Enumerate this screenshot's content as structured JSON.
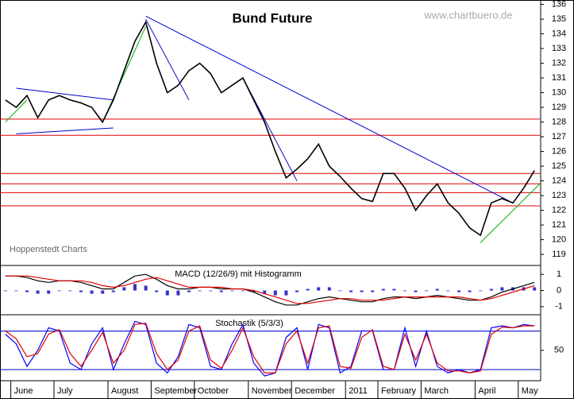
{
  "chart_data": [
    {
      "type": "line",
      "title": "Bund Future",
      "watermark": "www.chartbuero.de",
      "source": "Hoppenstedt Charts",
      "color": "#000000",
      "categories": [
        null,
        "June",
        null,
        null,
        null,
        "July",
        null,
        null,
        null,
        null,
        "August",
        null,
        null,
        null,
        "September",
        null,
        null,
        null,
        "October",
        null,
        null,
        null,
        null,
        "November",
        null,
        null,
        null,
        "December",
        null,
        null,
        null,
        null,
        "2011",
        null,
        null,
        "February",
        null,
        null,
        null,
        "March",
        null,
        null,
        null,
        null,
        "April",
        null,
        null,
        null,
        "May",
        null
      ],
      "values": [
        129.5,
        129,
        129.8,
        128.3,
        129.5,
        129.8,
        129.5,
        129.3,
        129,
        128,
        129.5,
        131.5,
        133.5,
        134.8,
        132,
        130,
        130.5,
        131.5,
        132,
        131.3,
        130,
        130.5,
        131,
        129.5,
        128,
        126,
        124.2,
        124.8,
        125.5,
        126.5,
        125,
        124.3,
        123.5,
        122.8,
        122.6,
        124.5,
        124.5,
        123.5,
        122,
        123,
        123.8,
        122.5,
        121.8,
        120.8,
        120.3,
        122.5,
        122.8,
        122.5,
        123.5,
        124.7
      ],
      "ylim": [
        118.3,
        136.3
      ],
      "yticks": [
        119,
        120,
        121,
        122,
        123,
        124,
        125,
        126,
        127,
        128,
        129,
        130,
        131,
        132,
        133,
        134,
        135,
        136
      ],
      "levels": [
        128.2,
        127.1,
        124.5,
        123.8,
        123.2,
        122.3
      ],
      "level_color": "#e00000",
      "trendlines": [
        {
          "color": "#0000cc",
          "x": [
            13,
            47
          ],
          "values": [
            135.2,
            122.5
          ]
        },
        {
          "color": "#0000cc",
          "x": [
            1,
            10
          ],
          "values": [
            130.3,
            129.5
          ]
        },
        {
          "color": "#0000cc",
          "x": [
            1,
            10
          ],
          "values": [
            127.2,
            127.6
          ]
        },
        {
          "color": "#0000cc",
          "x": [
            13,
            17
          ],
          "values": [
            135,
            129.5
          ]
        },
        {
          "color": "#0000cc",
          "x": [
            22,
            27
          ],
          "values": [
            131,
            124
          ]
        },
        {
          "color": "#00aa00",
          "x": [
            9,
            13
          ],
          "values": [
            128,
            134.5
          ]
        },
        {
          "color": "#00aa00",
          "x": [
            44,
            49.5
          ],
          "values": [
            119.8,
            123.8
          ]
        },
        {
          "color": "#00aa00",
          "x": [
            0,
            2
          ],
          "values": [
            128,
            129.5
          ]
        }
      ]
    },
    {
      "type": "macd",
      "title": "MACD (12/26/9) mit Histogramm",
      "ylim": [
        -1.5,
        1.5
      ],
      "yticks": [
        -1,
        0,
        1
      ],
      "series": [
        {
          "color": "#000000",
          "values": [
            0.9,
            0.9,
            0.8,
            0.6,
            0.5,
            0.6,
            0.6,
            0.5,
            0.3,
            0.1,
            0.1,
            0.5,
            0.9,
            1.0,
            0.7,
            0.3,
            0.1,
            0.1,
            0.2,
            0.2,
            0.1,
            0.1,
            0.1,
            -0.1,
            -0.4,
            -0.7,
            -0.9,
            -0.9,
            -0.7,
            -0.5,
            -0.4,
            -0.5,
            -0.6,
            -0.7,
            -0.7,
            -0.5,
            -0.4,
            -0.4,
            -0.5,
            -0.4,
            -0.3,
            -0.4,
            -0.5,
            -0.6,
            -0.6,
            -0.4,
            -0.1,
            0.1,
            0.3,
            0.5
          ]
        },
        {
          "color": "#e00000",
          "values": [
            0.9,
            0.9,
            0.9,
            0.8,
            0.7,
            0.6,
            0.6,
            0.6,
            0.5,
            0.3,
            0.2,
            0.3,
            0.5,
            0.7,
            0.8,
            0.6,
            0.4,
            0.2,
            0.2,
            0.2,
            0.2,
            0.1,
            0.1,
            0.0,
            -0.2,
            -0.4,
            -0.6,
            -0.8,
            -0.8,
            -0.7,
            -0.6,
            -0.5,
            -0.5,
            -0.6,
            -0.6,
            -0.6,
            -0.5,
            -0.4,
            -0.4,
            -0.4,
            -0.4,
            -0.4,
            -0.4,
            -0.5,
            -0.6,
            -0.5,
            -0.3,
            -0.1,
            0.1,
            0.3
          ]
        }
      ],
      "histogram": {
        "color": "#3333cc",
        "values": [
          0,
          0,
          -0.1,
          -0.2,
          -0.2,
          0,
          0,
          -0.1,
          -0.2,
          -0.2,
          -0.1,
          0.2,
          0.4,
          0.3,
          -0.1,
          -0.3,
          -0.3,
          -0.1,
          0,
          0,
          -0.1,
          0,
          0,
          -0.1,
          -0.2,
          -0.3,
          -0.3,
          -0.1,
          0.1,
          0.2,
          0.2,
          0,
          -0.1,
          -0.1,
          -0.1,
          0.1,
          0.1,
          0,
          -0.1,
          0,
          0.1,
          0,
          -0.1,
          -0.1,
          0,
          0.1,
          0.2,
          0.2,
          0.2,
          0.2
        ]
      }
    },
    {
      "type": "stochastic",
      "title": "Stochastik (5/3/3)",
      "ylim": [
        4,
        104
      ],
      "yticks": [
        50
      ],
      "levels": [
        20,
        80
      ],
      "level_color": "#0000cc",
      "series": [
        {
          "color": "#0000ff",
          "values": [
            75,
            60,
            25,
            50,
            85,
            80,
            30,
            20,
            60,
            85,
            20,
            60,
            95,
            90,
            30,
            15,
            40,
            90,
            85,
            25,
            20,
            60,
            90,
            30,
            10,
            15,
            70,
            85,
            20,
            90,
            85,
            15,
            25,
            80,
            80,
            20,
            20,
            85,
            25,
            80,
            25,
            15,
            20,
            15,
            20,
            85,
            88,
            85,
            90,
            88
          ]
        },
        {
          "color": "#e00000",
          "values": [
            80,
            68,
            40,
            45,
            75,
            82,
            45,
            25,
            50,
            78,
            30,
            50,
            90,
            92,
            45,
            20,
            35,
            80,
            88,
            35,
            22,
            50,
            85,
            40,
            15,
            15,
            60,
            80,
            30,
            85,
            88,
            25,
            22,
            70,
            82,
            25,
            20,
            75,
            35,
            75,
            30,
            18,
            18,
            15,
            18,
            75,
            86,
            85,
            88,
            88
          ]
        }
      ]
    }
  ]
}
